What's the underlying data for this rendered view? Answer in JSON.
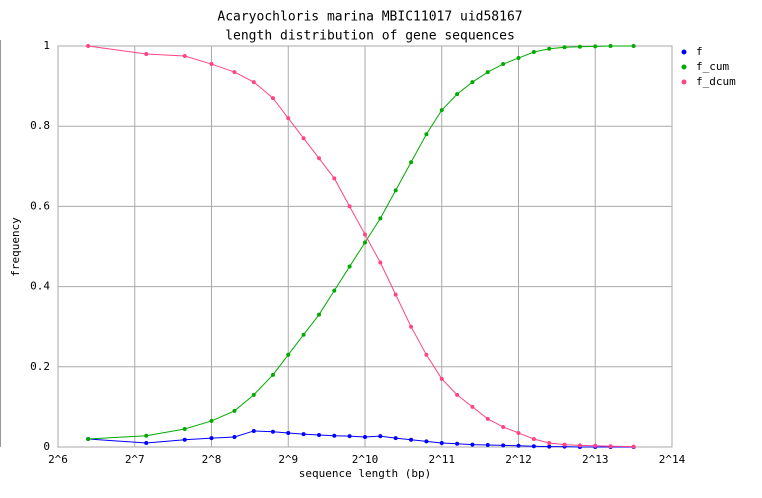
{
  "chart_data": {
    "type": "line",
    "title": "Acaryochloris marina MBIC11017 uid58167",
    "subtitle": "length distribution of gene sequences",
    "x_label": "sequence length (bp)",
    "y_label": "frequency",
    "xscale": "log",
    "grid": true,
    "legend": "right",
    "xlim": [
      64,
      16384
    ],
    "ylim": [
      0,
      1
    ],
    "xticks": [
      {
        "value": 64,
        "label": "2^6"
      },
      {
        "value": 128,
        "label": "2^7"
      },
      {
        "value": 256,
        "label": "2^8"
      },
      {
        "value": 512,
        "label": "2^9"
      },
      {
        "value": 1024,
        "label": "2^10"
      },
      {
        "value": 2048,
        "label": "2^11"
      },
      {
        "value": 4096,
        "label": "2^12"
      },
      {
        "value": 8192,
        "label": "2^13"
      },
      {
        "value": 16384,
        "label": "2^14"
      }
    ],
    "yticks": [
      0,
      0.2,
      0.4,
      0.6,
      0.8,
      1
    ],
    "x": [
      84,
      142,
      201,
      256,
      315,
      375,
      446,
      512,
      588,
      676,
      776,
      891,
      1024,
      1176,
      1351,
      1552,
      1783,
      2048,
      2353,
      2702,
      3104,
      3566,
      4096,
      4705,
      5405,
      6208,
      7132,
      8192,
      9410,
      11585
    ],
    "series": [
      {
        "name": "f",
        "color": "#0000ff",
        "values": [
          0.02,
          0.01,
          0.018,
          0.022,
          0.025,
          0.04,
          0.038,
          0.035,
          0.032,
          0.03,
          0.028,
          0.027,
          0.025,
          0.027,
          0.022,
          0.018,
          0.014,
          0.01,
          0.008,
          0.006,
          0.005,
          0.004,
          0.003,
          0.002,
          0.001,
          0.001,
          0,
          0,
          0,
          0
        ]
      },
      {
        "name": "f_cum",
        "color": "#00aa00",
        "values": [
          0.02,
          0.028,
          0.045,
          0.065,
          0.09,
          0.13,
          0.18,
          0.23,
          0.28,
          0.33,
          0.39,
          0.45,
          0.51,
          0.57,
          0.64,
          0.71,
          0.78,
          0.84,
          0.88,
          0.91,
          0.935,
          0.955,
          0.97,
          0.985,
          0.993,
          0.997,
          0.998,
          0.999,
          1,
          1
        ]
      },
      {
        "name": "f_dcum",
        "color": "#ff4488",
        "values": [
          1,
          0.98,
          0.975,
          0.955,
          0.935,
          0.91,
          0.87,
          0.82,
          0.77,
          0.72,
          0.67,
          0.6,
          0.53,
          0.46,
          0.38,
          0.3,
          0.23,
          0.17,
          0.13,
          0.1,
          0.07,
          0.05,
          0.035,
          0.02,
          0.01,
          0.006,
          0.004,
          0.003,
          0.002,
          0.001
        ]
      }
    ]
  }
}
